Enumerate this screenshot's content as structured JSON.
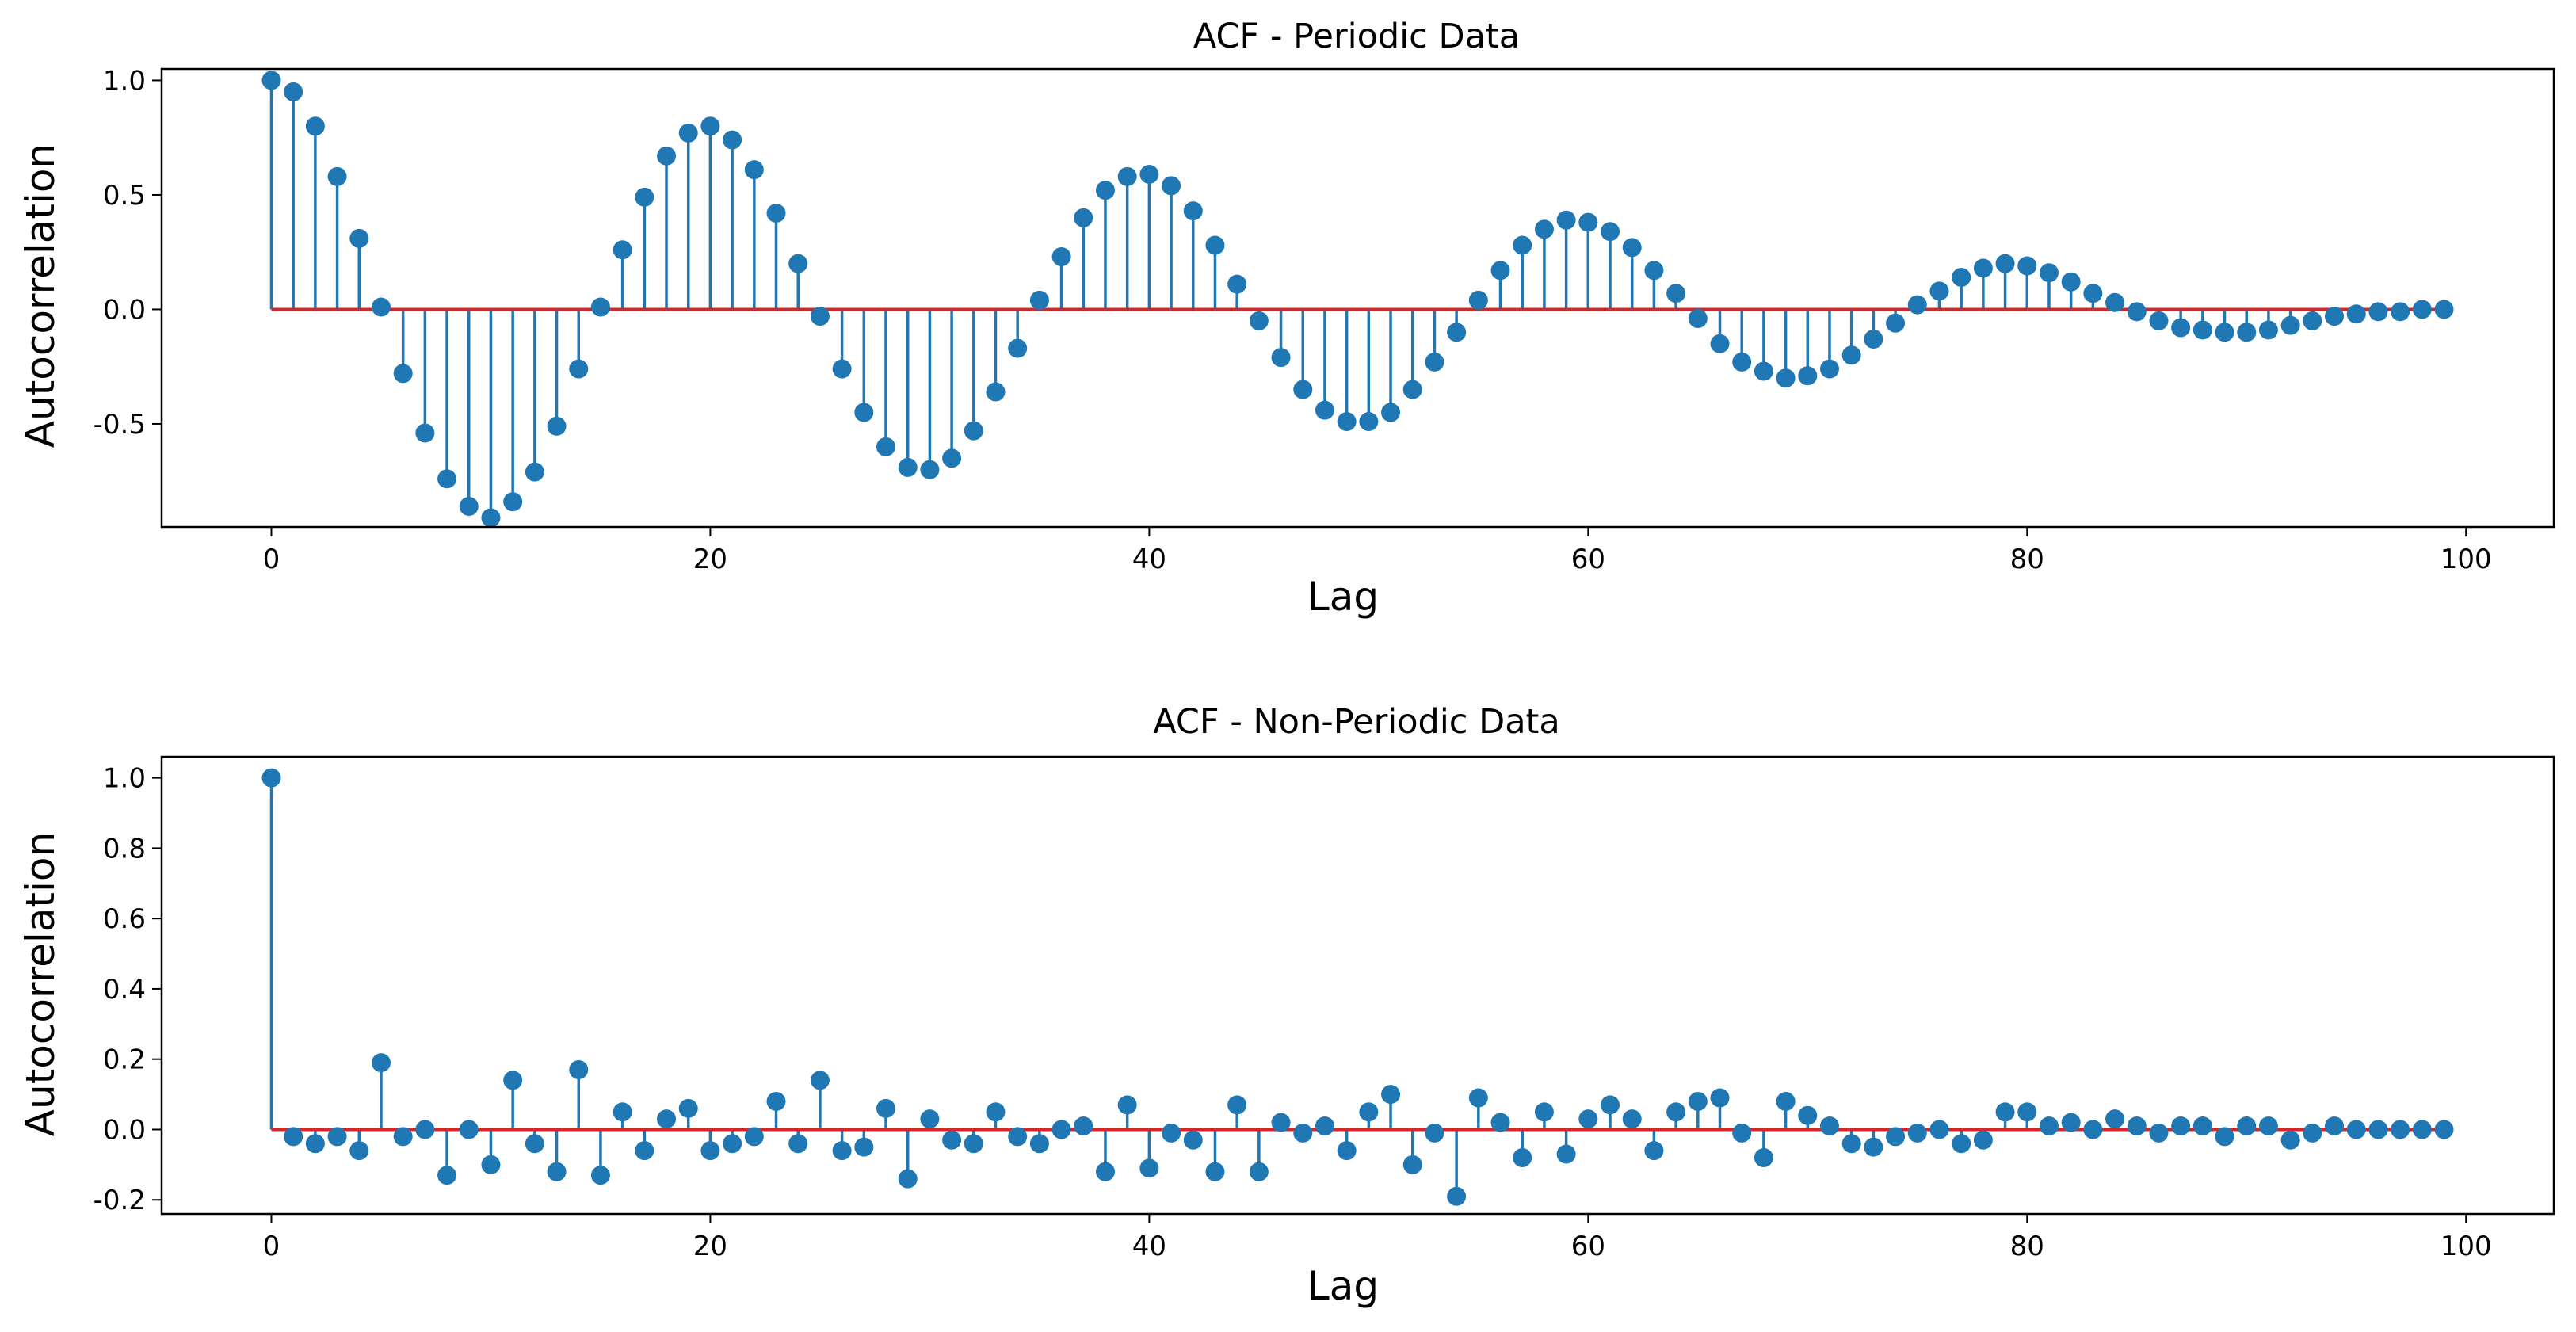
{
  "colors": {
    "stem": "#1f77b4",
    "baseline": "#d62728"
  },
  "chart_data": [
    {
      "type": "stem",
      "title": "ACF - Periodic Data",
      "xlabel": "Lag",
      "ylabel": "Autocorrelation",
      "xlim": [
        -5,
        104
      ],
      "ylim": [
        -0.95,
        1.05
      ],
      "xticks": [
        0,
        20,
        40,
        60,
        80,
        100
      ],
      "xtick_labels": [
        "0",
        "20",
        "40",
        "60",
        "80",
        "100"
      ],
      "yticks": [
        -0.5,
        0.0,
        0.5,
        1.0
      ],
      "ytick_labels": [
        "-0.5",
        "0.0",
        "0.5",
        "1.0"
      ],
      "x": [
        0,
        1,
        2,
        3,
        4,
        5,
        6,
        7,
        8,
        9,
        10,
        11,
        12,
        13,
        14,
        15,
        16,
        17,
        18,
        19,
        20,
        21,
        22,
        23,
        24,
        25,
        26,
        27,
        28,
        29,
        30,
        31,
        32,
        33,
        34,
        35,
        36,
        37,
        38,
        39,
        40,
        41,
        42,
        43,
        44,
        45,
        46,
        47,
        48,
        49,
        50,
        51,
        52,
        53,
        54,
        55,
        56,
        57,
        58,
        59,
        60,
        61,
        62,
        63,
        64,
        65,
        66,
        67,
        68,
        69,
        70,
        71,
        72,
        73,
        74,
        75,
        76,
        77,
        78,
        79,
        80,
        81,
        82,
        83,
        84,
        85,
        86,
        87,
        88,
        89,
        90,
        91,
        92,
        93,
        94,
        95,
        96,
        97,
        98,
        99
      ],
      "values": [
        1.0,
        0.95,
        0.8,
        0.58,
        0.31,
        0.01,
        -0.28,
        -0.54,
        -0.74,
        -0.86,
        -0.91,
        -0.84,
        -0.71,
        -0.51,
        -0.26,
        0.01,
        0.26,
        0.49,
        0.67,
        0.77,
        0.8,
        0.74,
        0.61,
        0.42,
        0.2,
        -0.03,
        -0.26,
        -0.45,
        -0.6,
        -0.69,
        -0.7,
        -0.65,
        -0.53,
        -0.36,
        -0.17,
        0.04,
        0.23,
        0.4,
        0.52,
        0.58,
        0.59,
        0.54,
        0.43,
        0.28,
        0.11,
        -0.05,
        -0.21,
        -0.35,
        -0.44,
        -0.49,
        -0.49,
        -0.45,
        -0.35,
        -0.23,
        -0.1,
        0.04,
        0.17,
        0.28,
        0.35,
        0.39,
        0.38,
        0.34,
        0.27,
        0.17,
        0.07,
        -0.04,
        -0.15,
        -0.23,
        -0.27,
        -0.3,
        -0.29,
        -0.26,
        -0.2,
        -0.13,
        -0.06,
        0.02,
        0.08,
        0.14,
        0.18,
        0.2,
        0.19,
        0.16,
        0.12,
        0.07,
        0.03,
        -0.01,
        -0.05,
        -0.08,
        -0.09,
        -0.1,
        -0.1,
        -0.09,
        -0.07,
        -0.05,
        -0.03,
        -0.02,
        -0.01,
        -0.01,
        0.0,
        0.0
      ]
    },
    {
      "type": "stem",
      "title": "ACF - Non-Periodic Data",
      "xlabel": "Lag",
      "ylabel": "Autocorrelation",
      "xlim": [
        -5,
        104
      ],
      "ylim": [
        -0.24,
        1.06
      ],
      "xticks": [
        0,
        20,
        40,
        60,
        80,
        100
      ],
      "xtick_labels": [
        "0",
        "20",
        "40",
        "60",
        "80",
        "100"
      ],
      "yticks": [
        -0.2,
        0.0,
        0.2,
        0.4,
        0.6,
        0.8,
        1.0
      ],
      "ytick_labels": [
        "-0.2",
        "0.0",
        "0.2",
        "0.4",
        "0.6",
        "0.8",
        "1.0"
      ],
      "x": [
        0,
        1,
        2,
        3,
        4,
        5,
        6,
        7,
        8,
        9,
        10,
        11,
        12,
        13,
        14,
        15,
        16,
        17,
        18,
        19,
        20,
        21,
        22,
        23,
        24,
        25,
        26,
        27,
        28,
        29,
        30,
        31,
        32,
        33,
        34,
        35,
        36,
        37,
        38,
        39,
        40,
        41,
        42,
        43,
        44,
        45,
        46,
        47,
        48,
        49,
        50,
        51,
        52,
        53,
        54,
        55,
        56,
        57,
        58,
        59,
        60,
        61,
        62,
        63,
        64,
        65,
        66,
        67,
        68,
        69,
        70,
        71,
        72,
        73,
        74,
        75,
        76,
        77,
        78,
        79,
        80,
        81,
        82,
        83,
        84,
        85,
        86,
        87,
        88,
        89,
        90,
        91,
        92,
        93,
        94,
        95,
        96,
        97,
        98,
        99
      ],
      "values": [
        1.0,
        -0.02,
        -0.04,
        -0.02,
        -0.06,
        0.19,
        -0.02,
        0.0,
        -0.13,
        0.0,
        -0.1,
        0.14,
        -0.04,
        -0.12,
        0.17,
        -0.13,
        0.05,
        -0.06,
        0.03,
        0.06,
        -0.06,
        -0.04,
        -0.02,
        0.08,
        -0.04,
        0.14,
        -0.06,
        -0.05,
        0.06,
        -0.14,
        0.03,
        -0.03,
        -0.04,
        0.05,
        -0.02,
        -0.04,
        0.0,
        0.01,
        -0.12,
        0.07,
        -0.11,
        -0.01,
        -0.03,
        -0.12,
        0.07,
        -0.12,
        0.02,
        -0.01,
        0.01,
        -0.06,
        0.05,
        0.1,
        -0.1,
        -0.01,
        -0.19,
        0.09,
        0.02,
        -0.08,
        0.05,
        -0.07,
        0.03,
        0.07,
        0.03,
        -0.06,
        0.05,
        0.08,
        0.09,
        -0.01,
        -0.08,
        0.08,
        0.04,
        0.01,
        -0.04,
        -0.05,
        -0.02,
        -0.01,
        0.0,
        -0.04,
        -0.03,
        0.05,
        0.05,
        0.01,
        0.02,
        0.0,
        0.03,
        0.01,
        -0.01,
        0.01,
        0.01,
        -0.02,
        0.01,
        0.01,
        -0.03,
        -0.01,
        0.01,
        0.0,
        0.0,
        0.0,
        0.0,
        0.0
      ]
    }
  ]
}
